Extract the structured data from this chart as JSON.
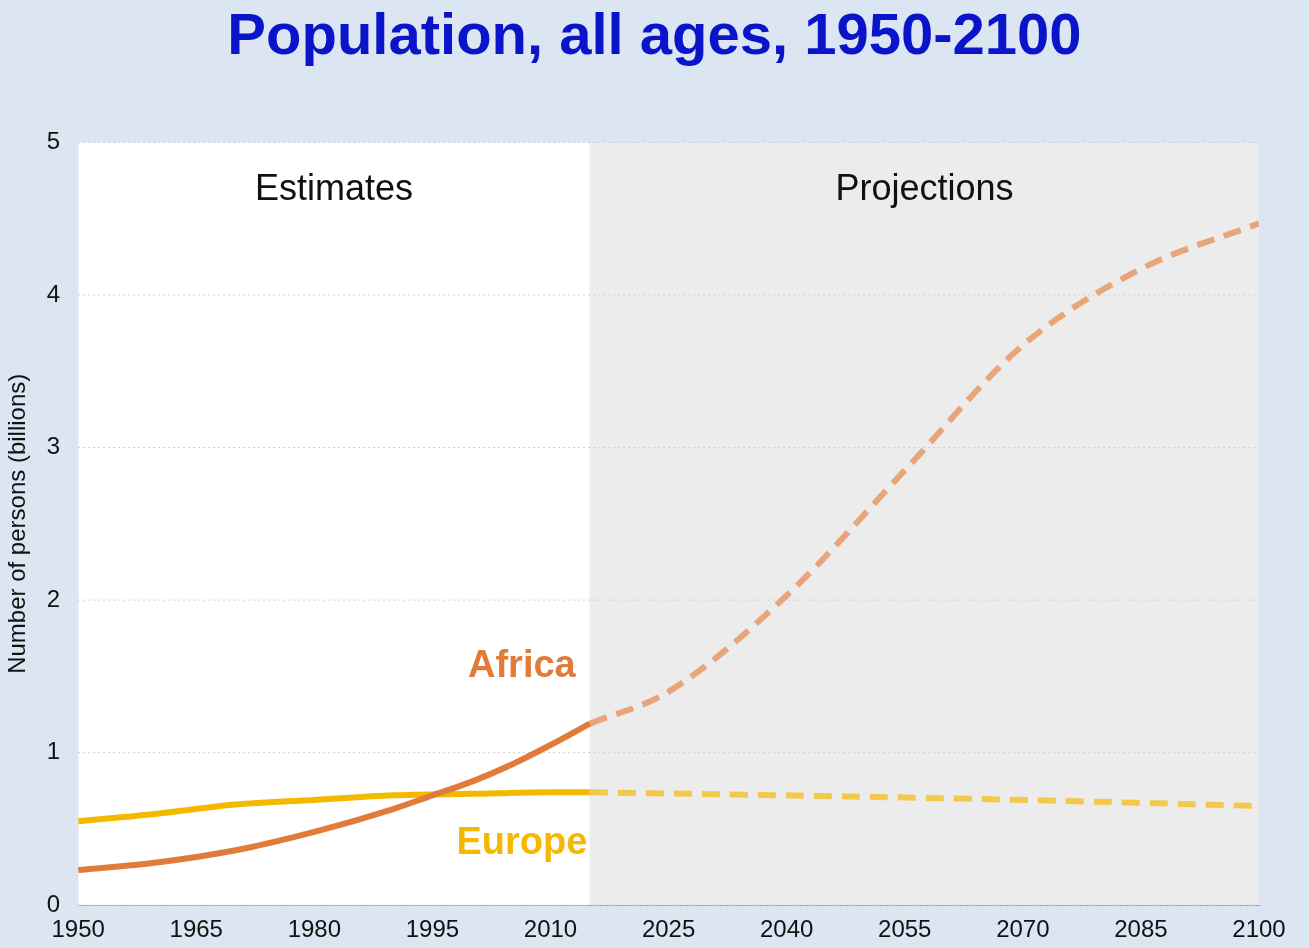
{
  "chart_data": {
    "type": "line",
    "title": "Population, all ages, 1950-2100",
    "ylabel": "Number of persons (billions)",
    "xlim": [
      1950,
      2100
    ],
    "xticks": [
      1950,
      1965,
      1980,
      1995,
      2010,
      2025,
      2040,
      2055,
      2070,
      2085,
      2100
    ],
    "ylim": [
      0,
      5
    ],
    "yticks": [
      0,
      1,
      2,
      3,
      4,
      5
    ],
    "grid": "y",
    "legend": false,
    "marker": "none",
    "bands": [
      {
        "axis": "x",
        "from": 1950,
        "to": 2015,
        "label": "Estimates",
        "color": "#ffffff"
      },
      {
        "axis": "x",
        "from": 2015,
        "to": 2100,
        "label": "Projections",
        "color": "#ececec"
      }
    ],
    "series": [
      {
        "name": "Africa",
        "color": "#e07b39",
        "line_style": "solid",
        "x": [
          1950,
          1960,
          1970,
          1980,
          1990,
          1995,
          2000,
          2005,
          2010,
          2015
        ],
        "values": [
          0.23,
          0.28,
          0.36,
          0.48,
          0.63,
          0.72,
          0.81,
          0.92,
          1.05,
          1.19
        ]
      },
      {
        "name": "Europe",
        "color": "#f5b800",
        "line_style": "solid",
        "x": [
          1950,
          1960,
          1970,
          1980,
          1990,
          2000,
          2010,
          2015
        ],
        "values": [
          0.55,
          0.6,
          0.66,
          0.69,
          0.72,
          0.73,
          0.74,
          0.74
        ]
      },
      {
        "color": "#e8a57a",
        "line_style": "dashed",
        "x": [
          2015,
          2025,
          2040,
          2055,
          2070,
          2085,
          2100
        ],
        "values": [
          1.19,
          1.4,
          2.03,
          2.85,
          3.67,
          4.17,
          4.47
        ]
      },
      {
        "color": "#f2c94c",
        "line_style": "dashed",
        "x": [
          2015,
          2040,
          2070,
          2100
        ],
        "values": [
          0.74,
          0.72,
          0.69,
          0.65
        ]
      }
    ]
  }
}
